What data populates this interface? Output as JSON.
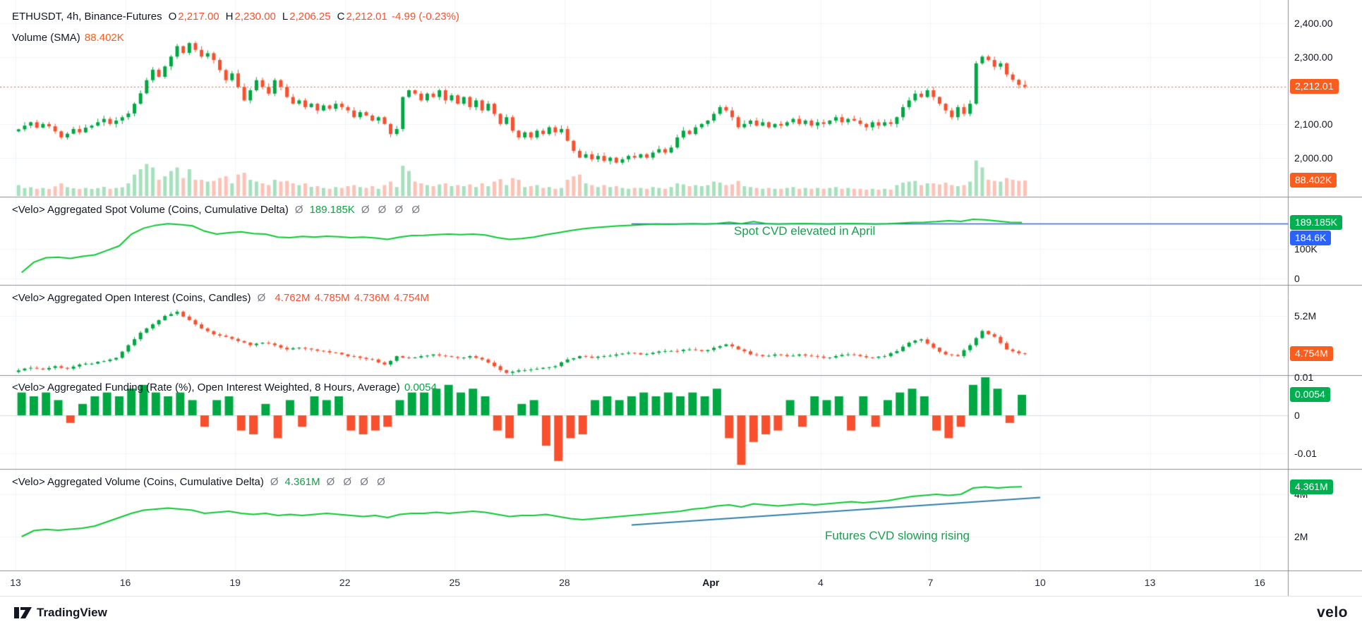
{
  "meta": {
    "app": "TradingView chart",
    "symbol": "ETHUSDT",
    "interval": "4h",
    "exchange": "Binance-Futures"
  },
  "colors": {
    "up": "#00a843",
    "down": "#f8502e",
    "line_green": "#0cc832",
    "legend_green": "#11a049",
    "blue": "#2962ff",
    "badge_orange": "#fa5d1e",
    "badge_green": "#00b050",
    "badge_blue": "#2962ff",
    "annotation_green": "#1b9e4f",
    "trendline": "#2e7fa8",
    "text": "#131722",
    "muted": "#787b86",
    "grid": "#f1f4f8",
    "divider": "#8c8f96",
    "vol_up": "rgba(0,168,67,0.35)",
    "vol_down": "rgba(248,80,46,0.35)"
  },
  "legends": {
    "price": {
      "title": "ETHUSDT, 4h, Binance-Futures",
      "ohlc": [
        {
          "k": "O",
          "v": "2,217.00"
        },
        {
          "k": "H",
          "v": "2,230.00"
        },
        {
          "k": "L",
          "v": "2,206.25"
        },
        {
          "k": "C",
          "v": "2,212.01"
        }
      ],
      "change": "-4.99 (-0.23%)"
    },
    "volume": {
      "title": "Volume (SMA)",
      "value": "88.402K"
    },
    "spot_cvd": {
      "title": "<Velo> Aggregated Spot Volume (Coins, Cumulative Delta)",
      "prefix": "Ø",
      "value": "189.185K",
      "suffix": "Ø Ø Ø Ø"
    },
    "open_interest": {
      "title": "<Velo> Aggregated Open Interest (Coins, Candles)",
      "prefix": "Ø",
      "values": [
        "4.762M",
        "4.785M",
        "4.736M",
        "4.754M"
      ]
    },
    "funding": {
      "title": "<Velo> Aggregated Funding (Rate (%), Open Interest Weighted, 8 Hours, Average)",
      "value": "0.0054"
    },
    "futures_cvd": {
      "title": "<Velo> Aggregated Volume (Coins, Cumulative Delta)",
      "prefix": "Ø",
      "value": "4.361M",
      "suffix": "Ø Ø Ø Ø"
    }
  },
  "annotations": {
    "spot": "Spot CVD elevated in April",
    "futures": "Futures CVD slowing rising"
  },
  "axis": {
    "price_ticks": [
      {
        "label": "2,400.00",
        "v": 2400
      },
      {
        "label": "2,300.00",
        "v": 2300
      },
      {
        "label": "2,100.00",
        "v": 2100
      },
      {
        "label": "2,000.00",
        "v": 2000
      }
    ],
    "price_badge": {
      "label": "2,212.01",
      "v": 2212.01
    },
    "volume_badge": {
      "label": "88.402K",
      "v": 88.402
    },
    "spot_ticks": [
      {
        "label": "100K",
        "v": 100
      },
      {
        "label": "0",
        "v": 0
      }
    ],
    "spot_badge": {
      "label": "189.185K",
      "v": 189.185
    },
    "spot_blue_badge": {
      "label": "184.6K",
      "v": 184.6
    },
    "oi_ticks": [
      {
        "label": "5.2M",
        "v": 5.2
      }
    ],
    "oi_badge": {
      "label": "4.754M",
      "v": 4.754
    },
    "funding_ticks": [
      {
        "label": "0.01",
        "v": 0.01
      },
      {
        "label": "0",
        "v": 0
      },
      {
        "label": "-0.01",
        "v": -0.01
      }
    ],
    "funding_badge": {
      "label": "0.0054",
      "v": 0.0054
    },
    "fut_ticks": [
      {
        "label": "4M",
        "v": 4
      },
      {
        "label": "2M",
        "v": 2
      }
    ],
    "fut_badge": {
      "label": "4.361M",
      "v": 4.361
    }
  },
  "time_axis": [
    {
      "label": "13",
      "bar": 0
    },
    {
      "label": "16",
      "bar": 18
    },
    {
      "label": "19",
      "bar": 36
    },
    {
      "label": "22",
      "bar": 54
    },
    {
      "label": "25",
      "bar": 72
    },
    {
      "label": "28",
      "bar": 90
    },
    {
      "label": "Apr",
      "bar": 114,
      "bold": true
    },
    {
      "label": "4",
      "bar": 132
    },
    {
      "label": "7",
      "bar": 150
    },
    {
      "label": "10",
      "bar": 168
    },
    {
      "label": "13",
      "bar": 186
    },
    {
      "label": "16",
      "bar": 204
    }
  ],
  "footer": {
    "tradingview": "TradingView",
    "velo": "velo"
  },
  "chart_data": [
    {
      "id": "price",
      "pane": "price",
      "type": "candlestick",
      "title": "ETHUSDT, 4h, Binance-Futures",
      "bar_interval_hours": 4,
      "x_start": "Mar 13",
      "x_end": "Apr 9",
      "ylim": [
        1885,
        2470
      ],
      "ohlc_last": {
        "open": 2217.0,
        "high": 2230.0,
        "low": 2206.25,
        "close": 2212.01,
        "change": -4.99,
        "change_pct": -0.23
      },
      "closes": [
        2085,
        2096,
        2106,
        2090,
        2101,
        2094,
        2079,
        2061,
        2072,
        2086,
        2076,
        2090,
        2096,
        2106,
        2116,
        2101,
        2111,
        2121,
        2132,
        2161,
        2192,
        2231,
        2262,
        2241,
        2272,
        2301,
        2332,
        2312,
        2341,
        2321,
        2301,
        2311,
        2291,
        2261,
        2231,
        2251,
        2211,
        2171,
        2201,
        2231,
        2211,
        2191,
        2231,
        2211,
        2181,
        2161,
        2171,
        2151,
        2161,
        2141,
        2156,
        2146,
        2161,
        2151,
        2141,
        2121,
        2136,
        2126,
        2111,
        2121,
        2101,
        2071,
        2086,
        2181,
        2201,
        2191,
        2171,
        2191,
        2181,
        2201,
        2171,
        2186,
        2161,
        2181,
        2151,
        2171,
        2141,
        2161,
        2131,
        2101,
        2121,
        2081,
        2061,
        2076,
        2061,
        2081,
        2071,
        2091,
        2076,
        2086,
        2051,
        2021,
        2001,
        2011,
        1996,
        2006,
        1991,
        2001,
        1986,
        1996,
        2006,
        2001,
        2011,
        2001,
        2016,
        2026,
        2016,
        2031,
        2061,
        2081,
        2071,
        2091,
        2101,
        2111,
        2131,
        2151,
        2141,
        2121,
        2091,
        2101,
        2111,
        2096,
        2106,
        2091,
        2101,
        2096,
        2106,
        2116,
        2101,
        2111,
        2096,
        2106,
        2101,
        2111,
        2121,
        2106,
        2116,
        2111,
        2101,
        2091,
        2106,
        2096,
        2106,
        2101,
        2121,
        2151,
        2171,
        2191,
        2181,
        2201,
        2181,
        2161,
        2141,
        2121,
        2151,
        2131,
        2161,
        2281,
        2301,
        2291,
        2271,
        2281,
        2248,
        2232,
        2217,
        2212.01
      ],
      "volume_k": [
        62,
        45,
        50,
        41,
        46,
        40,
        55,
        72,
        50,
        44,
        40,
        46,
        40,
        45,
        52,
        41,
        46,
        50,
        72,
        122,
        152,
        182,
        162,
        92,
        112,
        142,
        162,
        102,
        152,
        92,
        92,
        82,
        86,
        102,
        112,
        72,
        122,
        132,
        92,
        82,
        72,
        62,
        92,
        82,
        86,
        72,
        62,
        72,
        52,
        56,
        46,
        41,
        51,
        46,
        56,
        62,
        51,
        46,
        56,
        41,
        62,
        82,
        51,
        172,
        142,
        82,
        72,
        62,
        56,
        66,
        72,
        56,
        62,
        56,
        66,
        51,
        72,
        56,
        82,
        96,
        62,
        102,
        92,
        51,
        56,
        62,
        46,
        51,
        41,
        46,
        92,
        112,
        122,
        72,
        62,
        51,
        62,
        51,
        56,
        46,
        41,
        46,
        46,
        41,
        51,
        46,
        41,
        51,
        72,
        66,
        56,
        62,
        56,
        62,
        82,
        76,
        62,
        66,
        86,
        56,
        51,
        46,
        41,
        46,
        41,
        41,
        46,
        51,
        41,
        46,
        41,
        46,
        41,
        46,
        51,
        41,
        46,
        41,
        41,
        36,
        41,
        36,
        41,
        36,
        62,
        76,
        82,
        86,
        62,
        72,
        72,
        66,
        76,
        62,
        56,
        62,
        82,
        202,
        162,
        92,
        86,
        82,
        102,
        92,
        86,
        88.402
      ],
      "volume_sma_last_k": 88.402
    },
    {
      "id": "spot_cvd",
      "pane": "spot",
      "type": "line",
      "title": "<Velo> Aggregated Spot Volume (Coins, Cumulative Delta)",
      "unit": "K",
      "step_bars": 2,
      "last": 189.185,
      "ylim": [
        0,
        260
      ],
      "values": [
        20,
        55,
        70,
        72,
        68,
        75,
        80,
        95,
        110,
        150,
        170,
        180,
        185,
        182,
        178,
        160,
        150,
        155,
        158,
        152,
        150,
        140,
        138,
        142,
        140,
        143,
        141,
        138,
        140,
        137,
        132,
        140,
        145,
        146,
        148,
        150,
        148,
        150,
        147,
        138,
        132,
        135,
        140,
        148,
        155,
        162,
        168,
        172,
        175,
        178,
        180,
        182,
        184,
        183,
        184,
        185,
        184,
        186,
        190,
        185,
        192,
        186,
        184,
        185,
        186,
        185,
        184,
        185,
        186,
        185,
        184,
        185,
        187,
        189,
        190,
        192,
        195,
        193,
        200,
        198,
        194,
        190,
        189.185
      ],
      "hline": {
        "v": 184.6,
        "start_bar": 101
      }
    },
    {
      "id": "open_interest",
      "pane": "oi",
      "type": "candlestick",
      "title": "<Velo> Aggregated Open Interest (Coins, Candles)",
      "unit": "M",
      "step_bars": 2,
      "last": 4.754,
      "ylim": [
        4.4,
        5.35
      ],
      "ohlc_legend": [
        4.762,
        4.785,
        4.736,
        4.754
      ],
      "values": [
        4.55,
        4.58,
        4.56,
        4.6,
        4.57,
        4.62,
        4.63,
        4.66,
        4.7,
        4.85,
        5.0,
        5.1,
        5.2,
        5.25,
        5.15,
        5.05,
        4.98,
        4.95,
        4.9,
        4.85,
        4.88,
        4.85,
        4.8,
        4.82,
        4.8,
        4.78,
        4.76,
        4.72,
        4.7,
        4.68,
        4.62,
        4.72,
        4.7,
        4.72,
        4.74,
        4.72,
        4.7,
        4.72,
        4.68,
        4.6,
        4.52,
        4.55,
        4.56,
        4.58,
        4.6,
        4.68,
        4.72,
        4.7,
        4.72,
        4.74,
        4.76,
        4.74,
        4.76,
        4.78,
        4.78,
        4.8,
        4.78,
        4.82,
        4.86,
        4.8,
        4.74,
        4.72,
        4.74,
        4.72,
        4.74,
        4.72,
        4.7,
        4.72,
        4.74,
        4.72,
        4.7,
        4.72,
        4.78,
        4.88,
        4.92,
        4.82,
        4.74,
        4.72,
        4.85,
        5.02,
        4.95,
        4.8,
        4.754
      ]
    },
    {
      "id": "funding",
      "pane": "funding",
      "type": "bar",
      "title": "<Velo> Aggregated Funding (Rate (%), Open Interest Weighted, 8 Hours, Average)",
      "unit": "%",
      "step_bars": 2,
      "last": 0.0054,
      "ylim": [
        -0.015,
        0.012
      ],
      "values": [
        0.006,
        0.005,
        0.006,
        0.004,
        -0.002,
        0.003,
        0.005,
        0.006,
        0.005,
        0.007,
        0.008,
        0.006,
        0.005,
        0.006,
        0.004,
        -0.003,
        0.004,
        0.005,
        -0.004,
        -0.005,
        0.003,
        -0.006,
        0.004,
        -0.003,
        0.005,
        0.004,
        0.005,
        -0.004,
        -0.005,
        -0.004,
        -0.003,
        0.004,
        0.006,
        0.006,
        0.007,
        0.008,
        0.006,
        0.007,
        0.005,
        -0.004,
        -0.006,
        0.003,
        0.004,
        -0.008,
        -0.012,
        -0.006,
        -0.005,
        0.004,
        0.005,
        0.004,
        0.005,
        0.006,
        0.005,
        0.006,
        0.005,
        0.006,
        0.005,
        0.007,
        -0.006,
        -0.013,
        -0.007,
        -0.005,
        -0.004,
        0.004,
        -0.003,
        0.005,
        0.004,
        0.005,
        -0.004,
        0.005,
        -0.003,
        0.004,
        0.006,
        0.007,
        0.005,
        -0.004,
        -0.006,
        -0.003,
        0.008,
        0.01,
        0.007,
        -0.002,
        0.0054
      ]
    },
    {
      "id": "futures_cvd",
      "pane": "fut",
      "type": "line",
      "title": "<Velo> Aggregated Volume (Coins, Cumulative Delta)",
      "unit": "M",
      "step_bars": 2,
      "last": 4.361,
      "ylim": [
        1.5,
        4.7
      ],
      "values": [
        2.0,
        2.28,
        2.34,
        2.3,
        2.35,
        2.4,
        2.5,
        2.7,
        2.9,
        3.1,
        3.25,
        3.3,
        3.35,
        3.3,
        3.25,
        3.1,
        3.15,
        3.2,
        3.1,
        3.05,
        3.1,
        3.0,
        3.05,
        3.0,
        3.05,
        3.1,
        3.05,
        3.0,
        2.95,
        3.0,
        2.9,
        3.05,
        3.1,
        3.1,
        3.15,
        3.1,
        3.15,
        3.2,
        3.15,
        3.05,
        2.95,
        3.0,
        3.0,
        3.05,
        2.95,
        2.85,
        2.8,
        2.85,
        2.9,
        2.95,
        3.0,
        3.05,
        3.1,
        3.15,
        3.2,
        3.3,
        3.35,
        3.45,
        3.5,
        3.4,
        3.55,
        3.5,
        3.45,
        3.5,
        3.55,
        3.5,
        3.55,
        3.6,
        3.65,
        3.6,
        3.65,
        3.7,
        3.8,
        3.9,
        3.95,
        4.0,
        3.95,
        4.0,
        4.3,
        4.35,
        4.3,
        4.34,
        4.361
      ],
      "trendline": {
        "start_bar": 101,
        "start_v": 2.55,
        "end_bar": 168,
        "end_v": 3.85
      }
    }
  ]
}
